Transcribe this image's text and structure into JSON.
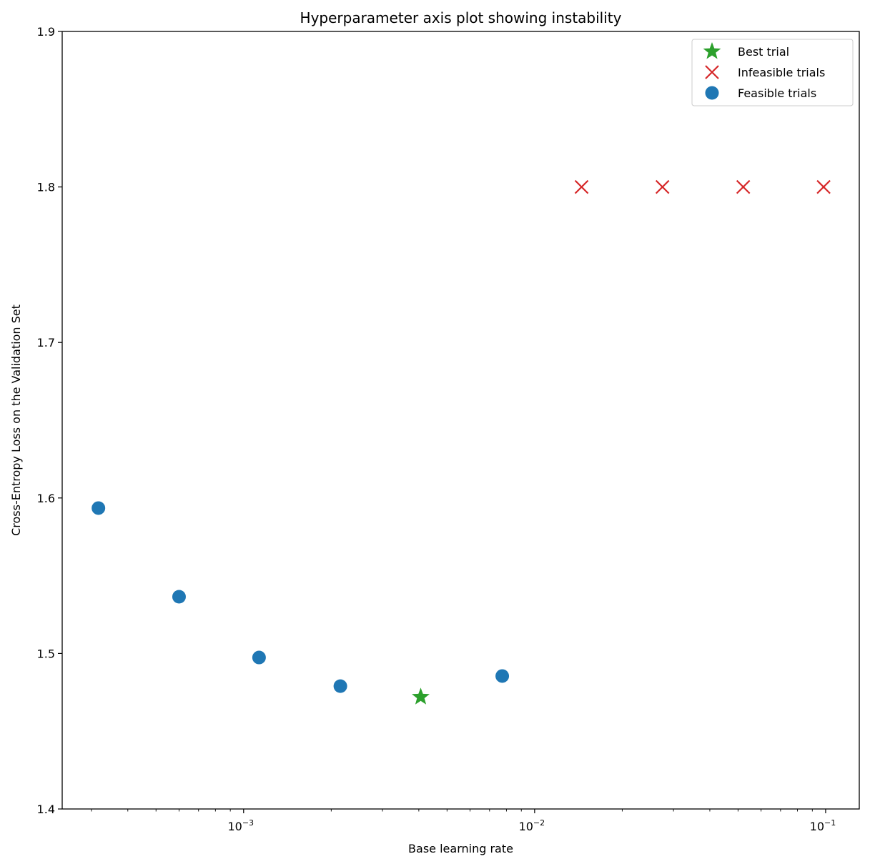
{
  "chart_data": {
    "type": "scatter",
    "title": "Hyperparameter axis plot showing instability",
    "xlabel": "Base learning rate",
    "ylabel": "Cross-Entropy Loss on the Validation Set",
    "xscale": "log",
    "xlim": [
      0.000238,
      0.1305
    ],
    "ylim": [
      1.4,
      1.9
    ],
    "xticks": [
      {
        "base": "10",
        "exp": "−3",
        "value": 0.001
      },
      {
        "base": "10",
        "exp": "−2",
        "value": 0.01
      },
      {
        "base": "10",
        "exp": "−1",
        "value": 0.1
      }
    ],
    "yticks": [
      "1.4",
      "1.5",
      "1.6",
      "1.7",
      "1.8",
      "1.9"
    ],
    "grid": false,
    "legend_position": "top-right",
    "series": [
      {
        "name": "Best trial",
        "marker": "star",
        "color": "#2ca02c",
        "points": [
          {
            "x": 0.00406,
            "y": 1.472
          }
        ]
      },
      {
        "name": "Infeasible trials",
        "marker": "x",
        "color": "#d62728",
        "points": [
          {
            "x": 0.0145,
            "y": 1.8
          },
          {
            "x": 0.0275,
            "y": 1.8
          },
          {
            "x": 0.0521,
            "y": 1.8
          },
          {
            "x": 0.0984,
            "y": 1.8
          }
        ]
      },
      {
        "name": "Feasible trials",
        "marker": "circle",
        "color": "#1f77b4",
        "points": [
          {
            "x": 0.000317,
            "y": 1.5935
          },
          {
            "x": 0.0006,
            "y": 1.5365
          },
          {
            "x": 0.00113,
            "y": 1.4974
          },
          {
            "x": 0.00215,
            "y": 1.479
          },
          {
            "x": 0.00774,
            "y": 1.4855
          }
        ]
      }
    ]
  }
}
